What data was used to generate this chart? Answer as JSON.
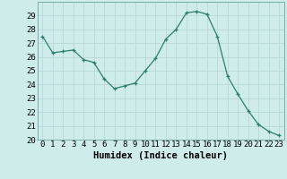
{
  "x": [
    0,
    1,
    2,
    3,
    4,
    5,
    6,
    7,
    8,
    9,
    10,
    11,
    12,
    13,
    14,
    15,
    16,
    17,
    18,
    19,
    20,
    21,
    22,
    23
  ],
  "y": [
    27.5,
    26.3,
    26.4,
    26.5,
    25.8,
    25.6,
    24.4,
    23.7,
    23.9,
    24.1,
    25.0,
    25.9,
    27.3,
    28.0,
    29.2,
    29.3,
    29.1,
    27.5,
    24.6,
    23.3,
    22.1,
    21.1,
    20.6,
    20.3
  ],
  "xlabel": "Humidex (Indice chaleur)",
  "ylim": [
    20,
    30
  ],
  "xlim": [
    -0.5,
    23.5
  ],
  "yticks": [
    20,
    21,
    22,
    23,
    24,
    25,
    26,
    27,
    28,
    29
  ],
  "xticks": [
    0,
    1,
    2,
    3,
    4,
    5,
    6,
    7,
    8,
    9,
    10,
    11,
    12,
    13,
    14,
    15,
    16,
    17,
    18,
    19,
    20,
    21,
    22,
    23
  ],
  "line_color": "#2e7d6e",
  "marker": "+",
  "bg_color": "#ceecea",
  "grid_color": "#b8d8d5",
  "xlabel_fontsize": 7.5,
  "tick_fontsize": 6.5
}
